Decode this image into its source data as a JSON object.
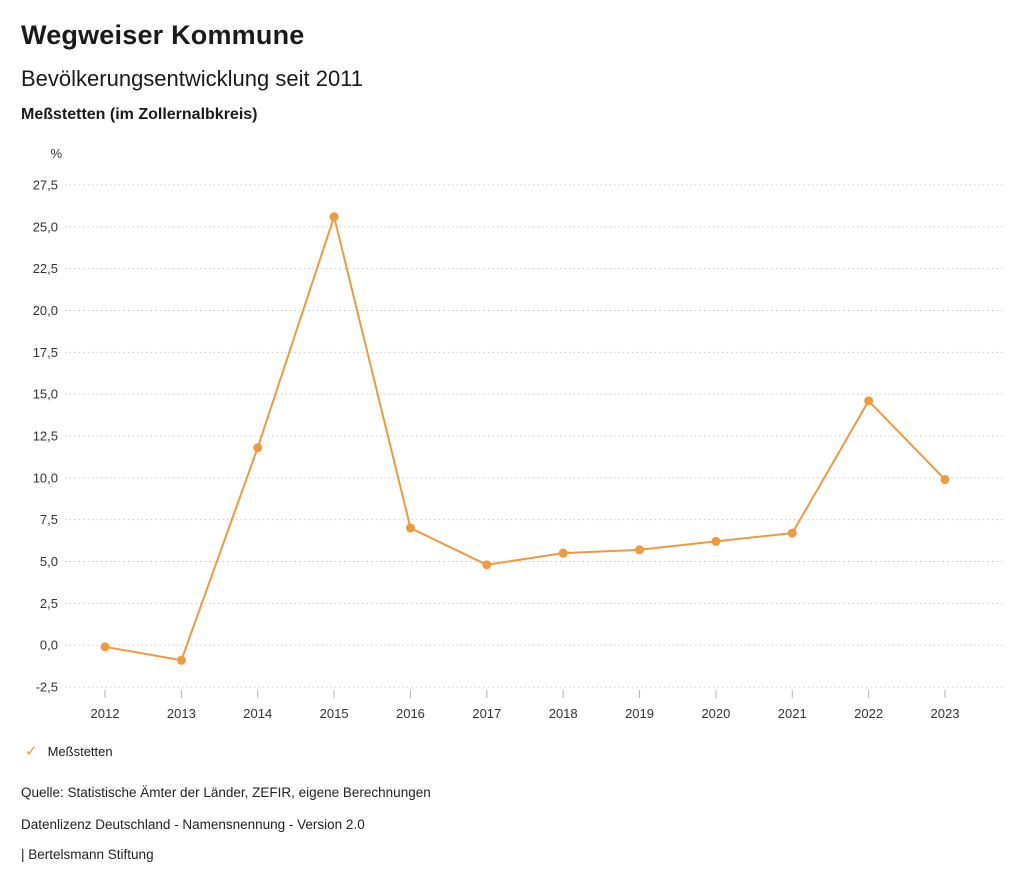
{
  "header": {
    "title": "Wegweiser Kommune",
    "subtitle": "Bevölkerungsentwicklung seit 2011",
    "region": "Meßstetten (im Zollernalbkreis)"
  },
  "chart_data": {
    "type": "line",
    "title": "Bevölkerungsentwicklung seit 2011",
    "unit_label": "%",
    "categories": [
      "2012",
      "2013",
      "2014",
      "2015",
      "2016",
      "2017",
      "2018",
      "2019",
      "2020",
      "2021",
      "2022",
      "2023"
    ],
    "series": [
      {
        "name": "Meßstetten",
        "color": "#F09A3E",
        "values": [
          -0.1,
          -0.9,
          11.8,
          25.6,
          7.0,
          4.8,
          5.5,
          5.7,
          6.2,
          6.7,
          14.6,
          9.9
        ]
      }
    ],
    "ylim": [
      -2.5,
      27.5
    ],
    "yticks": [
      27.5,
      25.0,
      22.5,
      20.0,
      17.5,
      15.0,
      12.5,
      10.0,
      7.5,
      5.0,
      2.5,
      0.0,
      -2.5
    ],
    "ytick_labels": [
      "27,5",
      "25,0",
      "22,5",
      "20,0",
      "17,5",
      "15,0",
      "12,5",
      "10,0",
      "7,5",
      "5,0",
      "2,5",
      "0,0",
      "-2,5"
    ],
    "grid": true,
    "grid_style": "dotted",
    "legend_position": "bottom-left"
  },
  "legend": {
    "items": [
      {
        "label": "Meßstetten",
        "color": "#F09A3E",
        "checked": true
      }
    ]
  },
  "footer": {
    "source": "Quelle: Statistische Ämter der Länder, ZEFIR, eigene Berechnungen",
    "license": "Datenlizenz Deutschland - Namensnennung - Version 2.0",
    "attribution": "| Bertelsmann Stiftung"
  },
  "colors": {
    "accent": "#F09A3E",
    "grid": "#C9C9C9",
    "text": "#1A1A1A",
    "tick_text": "#333333"
  }
}
